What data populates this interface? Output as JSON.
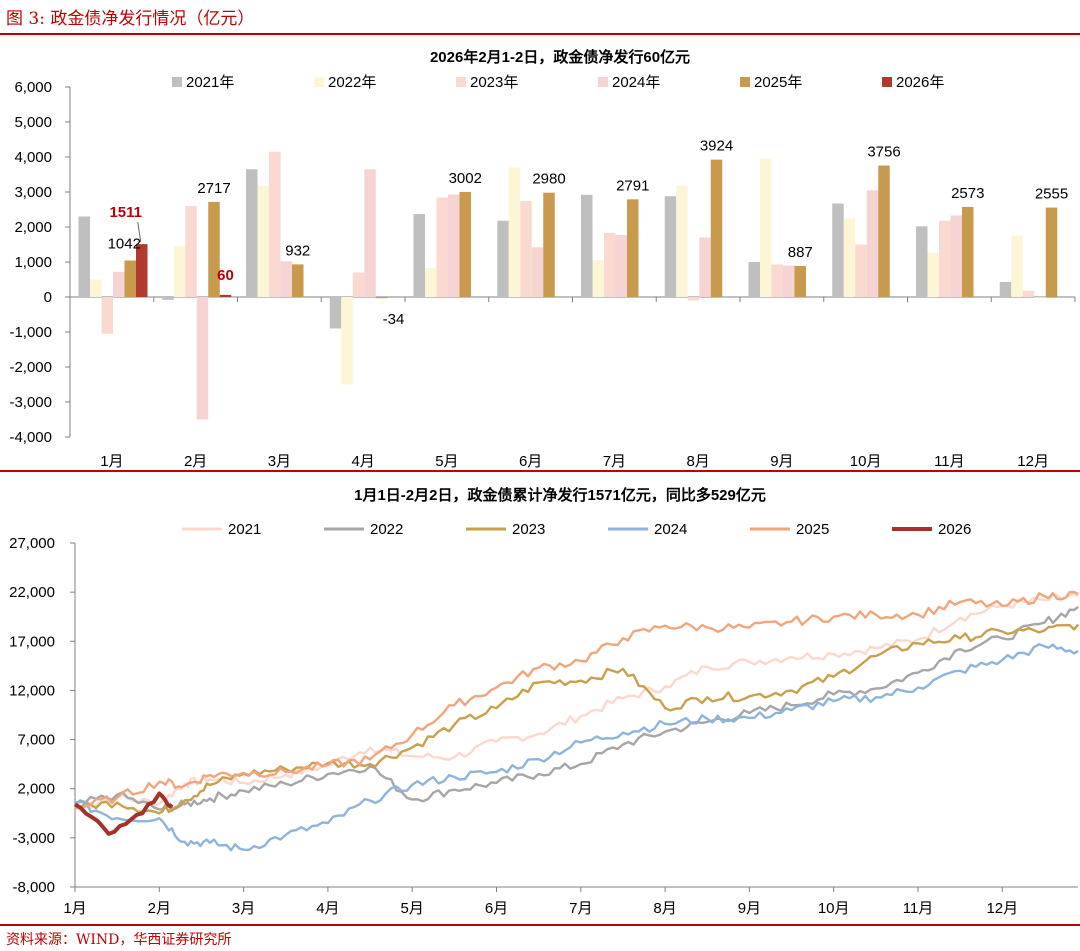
{
  "figure_title": "图 3:  政金债净发行情况（亿元）",
  "source": "资料来源：WIND，华西证券研究所",
  "colors": {
    "accent": "#c00000",
    "s2021": "#bfbfbf",
    "s2022": "#fdf6d6",
    "s2023": "#fad9d0",
    "s2024": "#f7d4d4",
    "s2025": "#c89a4e",
    "s2026": "#b03a2e",
    "l2021": "#fbd8cc",
    "l2022": "#a6a6a6",
    "l2023": "#c8a04e",
    "l2024": "#8fb4dc",
    "l2025": "#f2a57c",
    "l2026": "#a33228"
  },
  "chart_data": [
    {
      "type": "bar",
      "title": "2026年2月1-2日，政金债净发行60亿元",
      "categories": [
        "1月",
        "2月",
        "3月",
        "4月",
        "5月",
        "6月",
        "7月",
        "8月",
        "9月",
        "10月",
        "11月",
        "12月"
      ],
      "ylim": [
        -4000,
        6000
      ],
      "yticks": [
        "6,000",
        "5,000",
        "4,000",
        "3,000",
        "2,000",
        "1,000",
        "0",
        "-1,000",
        "-2,000",
        "-3,000",
        "-4,000"
      ],
      "legend_position": "top",
      "series": [
        {
          "name": "2021年",
          "values": [
            2300,
            -80,
            3650,
            -900,
            2370,
            2180,
            2920,
            2880,
            1000,
            2670,
            2020,
            430
          ]
        },
        {
          "name": "2022年",
          "values": [
            500,
            1450,
            3180,
            -2500,
            830,
            3700,
            1050,
            3180,
            3950,
            2250,
            1270,
            1750
          ]
        },
        {
          "name": "2023年",
          "values": [
            -1050,
            2600,
            4150,
            700,
            2840,
            2740,
            1830,
            -100,
            930,
            1500,
            2180,
            180
          ]
        },
        {
          "name": "2024年",
          "values": [
            720,
            -3500,
            1020,
            3650,
            2930,
            1420,
            1770,
            1700,
            900,
            3050,
            2330,
            0
          ]
        },
        {
          "name": "2025年",
          "values": [
            1042,
            2717,
            932,
            -34,
            3002,
            2980,
            2791,
            3924,
            887,
            3756,
            2573,
            2555
          ]
        },
        {
          "name": "2026年",
          "values": [
            1511,
            60,
            null,
            null,
            null,
            null,
            null,
            null,
            null,
            null,
            null,
            null
          ]
        }
      ],
      "data_labels": [
        {
          "text": "1042",
          "series": "2025年",
          "month": "1月",
          "value": 1042
        },
        {
          "text": "1511",
          "series": "2026年",
          "month": "1月",
          "value": 1511
        },
        {
          "text": "2717",
          "series": "2025年",
          "month": "2月",
          "value": 2717
        },
        {
          "text": "60",
          "series": "2026年",
          "month": "2月",
          "value": 60
        },
        {
          "text": "932",
          "series": "2025年",
          "month": "3月",
          "value": 932
        },
        {
          "text": "-34",
          "series": "2025年",
          "month": "4月",
          "value": -34
        },
        {
          "text": "3002",
          "series": "2025年",
          "month": "5月",
          "value": 3002
        },
        {
          "text": "2980",
          "series": "2025年",
          "month": "6月",
          "value": 2980
        },
        {
          "text": "2791",
          "series": "2025年",
          "month": "7月",
          "value": 2791
        },
        {
          "text": "3924",
          "series": "2025年",
          "month": "8月",
          "value": 3924
        },
        {
          "text": "887",
          "series": "2025年",
          "month": "9月",
          "value": 887
        },
        {
          "text": "3756",
          "series": "2025年",
          "month": "10月",
          "value": 3756
        },
        {
          "text": "2573",
          "series": "2025年",
          "month": "11月",
          "value": 2573
        },
        {
          "text": "2555",
          "series": "2025年",
          "month": "12月",
          "value": 2555
        }
      ]
    },
    {
      "type": "line",
      "title": "1月1日-2月2日，政金债累计净发行1571亿元，同比多529亿元",
      "x_unit": "month (fractional, 0 = Jan 1)",
      "xticks": [
        "1月",
        "2月",
        "3月",
        "4月",
        "5月",
        "6月",
        "7月",
        "8月",
        "9月",
        "10月",
        "11月",
        "12月"
      ],
      "ylim": [
        -8000,
        27000
      ],
      "yticks": [
        "27,000",
        "22,000",
        "17,000",
        "12,000",
        "7,000",
        "2,000",
        "-3,000",
        "-8,000"
      ],
      "legend_position": "top",
      "series": [
        {
          "name": "2021",
          "points": [
            [
              0,
              0
            ],
            [
              0.5,
              1100
            ],
            [
              1,
              500
            ],
            [
              1.3,
              2500
            ],
            [
              1.6,
              3000
            ],
            [
              2,
              2600
            ],
            [
              2.5,
              3400
            ],
            [
              3,
              4400
            ],
            [
              3.5,
              6200
            ],
            [
              4,
              5300
            ],
            [
              4.5,
              5200
            ],
            [
              5,
              6800
            ],
            [
              5.5,
              7600
            ],
            [
              6,
              9400
            ],
            [
              6.5,
              11200
            ],
            [
              7,
              12400
            ],
            [
              7.5,
              14400
            ],
            [
              8,
              14900
            ],
            [
              8.5,
              15400
            ],
            [
              9,
              15700
            ],
            [
              9.5,
              16300
            ],
            [
              10,
              17200
            ],
            [
              10.5,
              19400
            ],
            [
              11,
              20600
            ],
            [
              11.5,
              21200
            ],
            [
              11.9,
              21600
            ]
          ]
        },
        {
          "name": "2022",
          "points": [
            [
              0,
              300
            ],
            [
              0.5,
              1400
            ],
            [
              1,
              -100
            ],
            [
              1.3,
              400
            ],
            [
              1.6,
              1000
            ],
            [
              2,
              1800
            ],
            [
              2.5,
              2500
            ],
            [
              3,
              3500
            ],
            [
              3.5,
              4300
            ],
            [
              4,
              900
            ],
            [
              4.5,
              1900
            ],
            [
              5,
              2600
            ],
            [
              5.5,
              3500
            ],
            [
              6,
              4500
            ],
            [
              6.5,
              6500
            ],
            [
              7,
              7800
            ],
            [
              7.5,
              8800
            ],
            [
              8,
              9700
            ],
            [
              8.5,
              10500
            ],
            [
              9,
              11600
            ],
            [
              9.5,
              12200
            ],
            [
              10,
              13800
            ],
            [
              10.5,
              16200
            ],
            [
              11,
              17300
            ],
            [
              11.5,
              18900
            ],
            [
              11.9,
              20500
            ]
          ]
        },
        {
          "name": "2023",
          "points": [
            [
              0,
              100
            ],
            [
              0.5,
              600
            ],
            [
              1,
              -500
            ],
            [
              1.3,
              800
            ],
            [
              1.6,
              2400
            ],
            [
              2,
              3500
            ],
            [
              2.5,
              4000
            ],
            [
              3,
              4600
            ],
            [
              3.5,
              4500
            ],
            [
              4,
              6200
            ],
            [
              4.5,
              8500
            ],
            [
              5,
              10200
            ],
            [
              5.5,
              12800
            ],
            [
              6,
              13000
            ],
            [
              6.5,
              14200
            ],
            [
              7,
              10200
            ],
            [
              7.5,
              11300
            ],
            [
              8,
              11400
            ],
            [
              8.5,
              12000
            ],
            [
              9,
              13400
            ],
            [
              9.5,
              15500
            ],
            [
              10,
              16800
            ],
            [
              10.5,
              17300
            ],
            [
              11,
              18000
            ],
            [
              11.5,
              18100
            ],
            [
              11.9,
              18700
            ]
          ]
        },
        {
          "name": "2024",
          "points": [
            [
              0,
              600
            ],
            [
              0.5,
              -1000
            ],
            [
              1,
              -1000
            ],
            [
              1.3,
              -3400
            ],
            [
              1.6,
              -3500
            ],
            [
              2,
              -4200
            ],
            [
              2.5,
              -2700
            ],
            [
              3,
              -1500
            ],
            [
              3.5,
              800
            ],
            [
              4,
              2400
            ],
            [
              4.5,
              3200
            ],
            [
              5,
              3700
            ],
            [
              5.5,
              5000
            ],
            [
              6,
              6700
            ],
            [
              6.5,
              7700
            ],
            [
              7,
              8600
            ],
            [
              7.5,
              9100
            ],
            [
              8,
              9200
            ],
            [
              8.5,
              10000
            ],
            [
              9,
              10900
            ],
            [
              9.5,
              11300
            ],
            [
              10,
              12300
            ],
            [
              10.5,
              14000
            ],
            [
              11,
              15100
            ],
            [
              11.5,
              16500
            ],
            [
              11.9,
              16000
            ]
          ]
        },
        {
          "name": "2025",
          "points": [
            [
              0,
              0
            ],
            [
              0.5,
              1100
            ],
            [
              1,
              2700
            ],
            [
              1.3,
              2300
            ],
            [
              1.6,
              3400
            ],
            [
              2,
              3600
            ],
            [
              2.5,
              3700
            ],
            [
              3,
              4400
            ],
            [
              3.5,
              5000
            ],
            [
              4,
              7500
            ],
            [
              4.5,
              10500
            ],
            [
              5,
              12300
            ],
            [
              5.5,
              14300
            ],
            [
              6,
              15000
            ],
            [
              6.5,
              17300
            ],
            [
              7,
              18600
            ],
            [
              7.5,
              18400
            ],
            [
              8,
              18400
            ],
            [
              8.5,
              19000
            ],
            [
              9,
              19500
            ],
            [
              9.5,
              19700
            ],
            [
              10,
              19700
            ],
            [
              10.5,
              21000
            ],
            [
              11,
              20600
            ],
            [
              11.5,
              21600
            ],
            [
              11.9,
              21800
            ]
          ]
        },
        {
          "name": "2026",
          "points": [
            [
              0,
              400
            ],
            [
              0.2,
              -900
            ],
            [
              0.4,
              -2600
            ],
            [
              0.6,
              -1600
            ],
            [
              0.8,
              -500
            ],
            [
              1,
              1511
            ],
            [
              1.1,
              400
            ],
            [
              1.15,
              400
            ]
          ]
        }
      ]
    }
  ]
}
